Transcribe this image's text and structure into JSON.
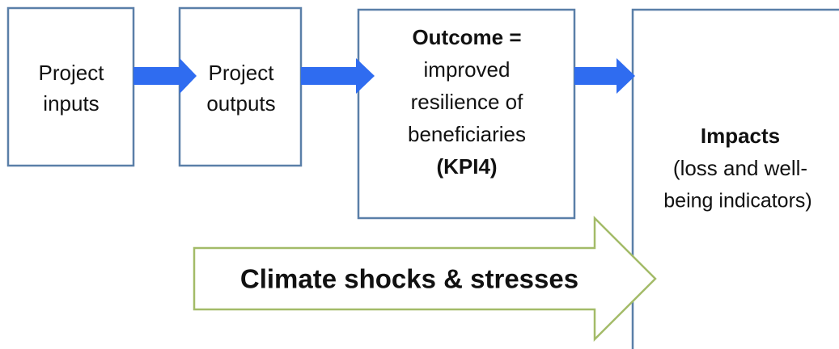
{
  "nodes": [
    {
      "lines": [
        "Project",
        "inputs"
      ]
    },
    {
      "lines": [
        "Project",
        "outputs"
      ]
    },
    {
      "title": "Outcome =",
      "lines": [
        "improved",
        "resilience of",
        "beneficiaries"
      ],
      "note": "(KPI4)"
    },
    {
      "title": "Impacts",
      "lines": [
        "(loss and well-",
        "being indicators)"
      ]
    }
  ],
  "arrow_label": "Climate shocks & stresses"
}
